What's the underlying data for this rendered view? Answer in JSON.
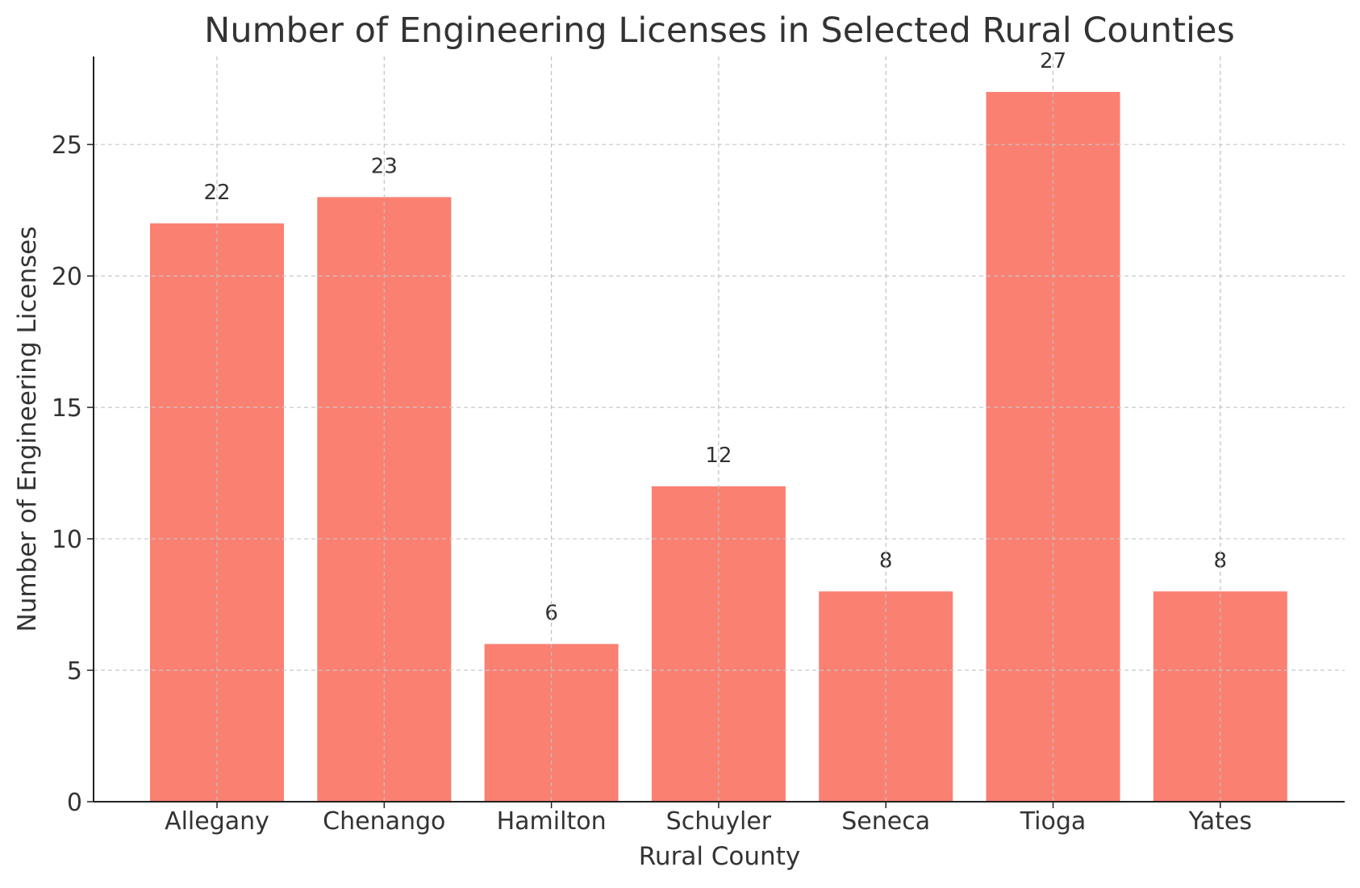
{
  "chart_data": {
    "type": "bar",
    "title": "Number of Engineering Licenses in Selected Rural Counties",
    "xlabel": "Rural County",
    "ylabel": "Number of Engineering Licenses",
    "categories": [
      "Allegany",
      "Chenango",
      "Hamilton",
      "Schuyler",
      "Seneca",
      "Tioga",
      "Yates"
    ],
    "values": [
      22,
      23,
      6,
      12,
      8,
      27,
      8
    ],
    "ylim": [
      0,
      28.35
    ],
    "yticks": [
      0,
      5,
      10,
      15,
      20,
      25
    ],
    "grid": true,
    "bar_color": "#FA8072",
    "data_labels": true
  }
}
